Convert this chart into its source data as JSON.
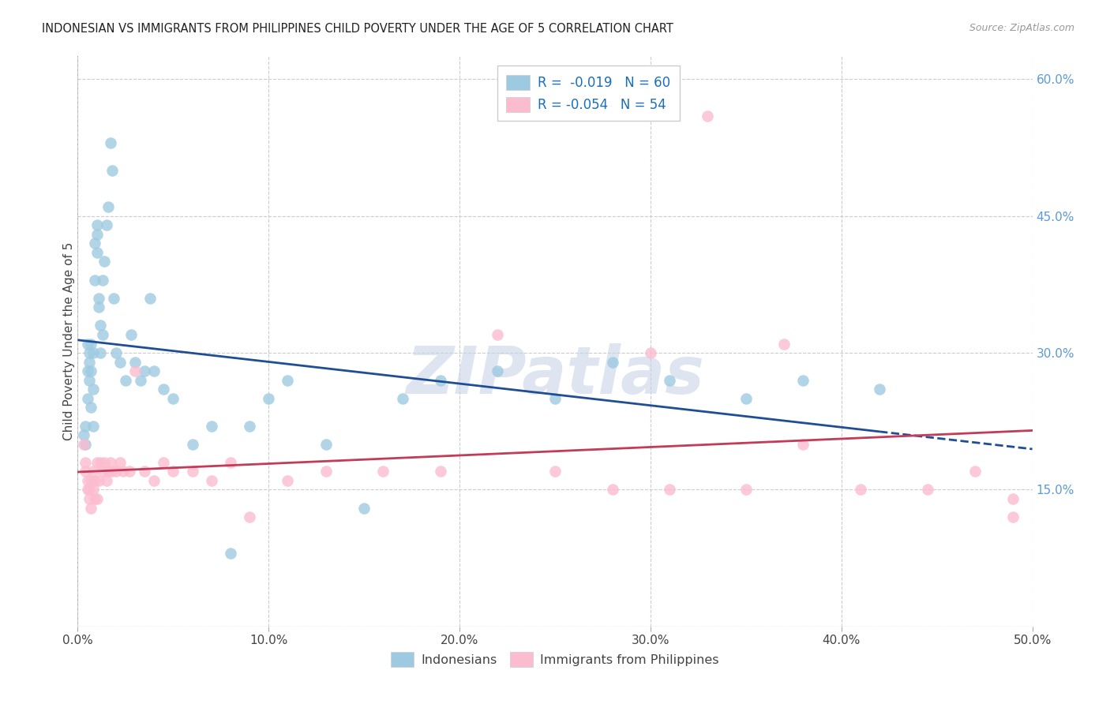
{
  "title": "INDONESIAN VS IMMIGRANTS FROM PHILIPPINES CHILD POVERTY UNDER THE AGE OF 5 CORRELATION CHART",
  "source": "Source: ZipAtlas.com",
  "ylabel": "Child Poverty Under the Age of 5",
  "xlim": [
    0.0,
    0.5
  ],
  "ylim": [
    0.0,
    0.625
  ],
  "xtick_values": [
    0.0,
    0.1,
    0.2,
    0.3,
    0.4,
    0.5
  ],
  "ytick_right_values": [
    0.15,
    0.3,
    0.45,
    0.6
  ],
  "legend_R1": "R =  -0.019   N = 60",
  "legend_R2": "R = -0.054   N = 54",
  "blue_scatter": "#9ecae1",
  "pink_scatter": "#fcbcd0",
  "line_blue": "#1f4e96",
  "line_pink": "#c23b58",
  "grid_color": "#cccccc",
  "watermark_text": "ZIPatlas",
  "watermark_color": "#c8d4e8",
  "indonesian_x": [
    0.003,
    0.004,
    0.004,
    0.005,
    0.005,
    0.005,
    0.006,
    0.006,
    0.006,
    0.007,
    0.007,
    0.007,
    0.008,
    0.008,
    0.008,
    0.009,
    0.009,
    0.01,
    0.01,
    0.01,
    0.011,
    0.011,
    0.012,
    0.012,
    0.013,
    0.013,
    0.014,
    0.015,
    0.016,
    0.017,
    0.018,
    0.019,
    0.02,
    0.022,
    0.025,
    0.028,
    0.03,
    0.033,
    0.035,
    0.038,
    0.04,
    0.045,
    0.05,
    0.06,
    0.07,
    0.08,
    0.09,
    0.1,
    0.11,
    0.13,
    0.15,
    0.17,
    0.19,
    0.22,
    0.25,
    0.28,
    0.31,
    0.35,
    0.38,
    0.42
  ],
  "indonesian_y": [
    0.21,
    0.2,
    0.22,
    0.28,
    0.31,
    0.25,
    0.29,
    0.27,
    0.3,
    0.31,
    0.24,
    0.28,
    0.3,
    0.26,
    0.22,
    0.38,
    0.42,
    0.44,
    0.41,
    0.43,
    0.36,
    0.35,
    0.3,
    0.33,
    0.32,
    0.38,
    0.4,
    0.44,
    0.46,
    0.53,
    0.5,
    0.36,
    0.3,
    0.29,
    0.27,
    0.32,
    0.29,
    0.27,
    0.28,
    0.36,
    0.28,
    0.26,
    0.25,
    0.2,
    0.22,
    0.08,
    0.22,
    0.25,
    0.27,
    0.2,
    0.13,
    0.25,
    0.27,
    0.28,
    0.25,
    0.29,
    0.27,
    0.25,
    0.27,
    0.26
  ],
  "philippines_x": [
    0.003,
    0.004,
    0.004,
    0.005,
    0.005,
    0.006,
    0.006,
    0.007,
    0.007,
    0.008,
    0.008,
    0.009,
    0.009,
    0.01,
    0.01,
    0.011,
    0.012,
    0.013,
    0.014,
    0.015,
    0.016,
    0.017,
    0.018,
    0.02,
    0.022,
    0.024,
    0.027,
    0.03,
    0.035,
    0.04,
    0.045,
    0.05,
    0.06,
    0.07,
    0.08,
    0.09,
    0.11,
    0.13,
    0.16,
    0.19,
    0.22,
    0.25,
    0.28,
    0.31,
    0.35,
    0.38,
    0.41,
    0.445,
    0.47,
    0.49,
    0.3,
    0.33,
    0.37,
    0.49
  ],
  "philippines_y": [
    0.2,
    0.18,
    0.17,
    0.15,
    0.16,
    0.14,
    0.15,
    0.13,
    0.16,
    0.15,
    0.17,
    0.14,
    0.16,
    0.18,
    0.14,
    0.16,
    0.18,
    0.17,
    0.18,
    0.16,
    0.17,
    0.18,
    0.17,
    0.17,
    0.18,
    0.17,
    0.17,
    0.28,
    0.17,
    0.16,
    0.18,
    0.17,
    0.17,
    0.16,
    0.18,
    0.12,
    0.16,
    0.17,
    0.17,
    0.17,
    0.32,
    0.17,
    0.15,
    0.15,
    0.15,
    0.2,
    0.15,
    0.15,
    0.17,
    0.12,
    0.3,
    0.56,
    0.31,
    0.14
  ]
}
